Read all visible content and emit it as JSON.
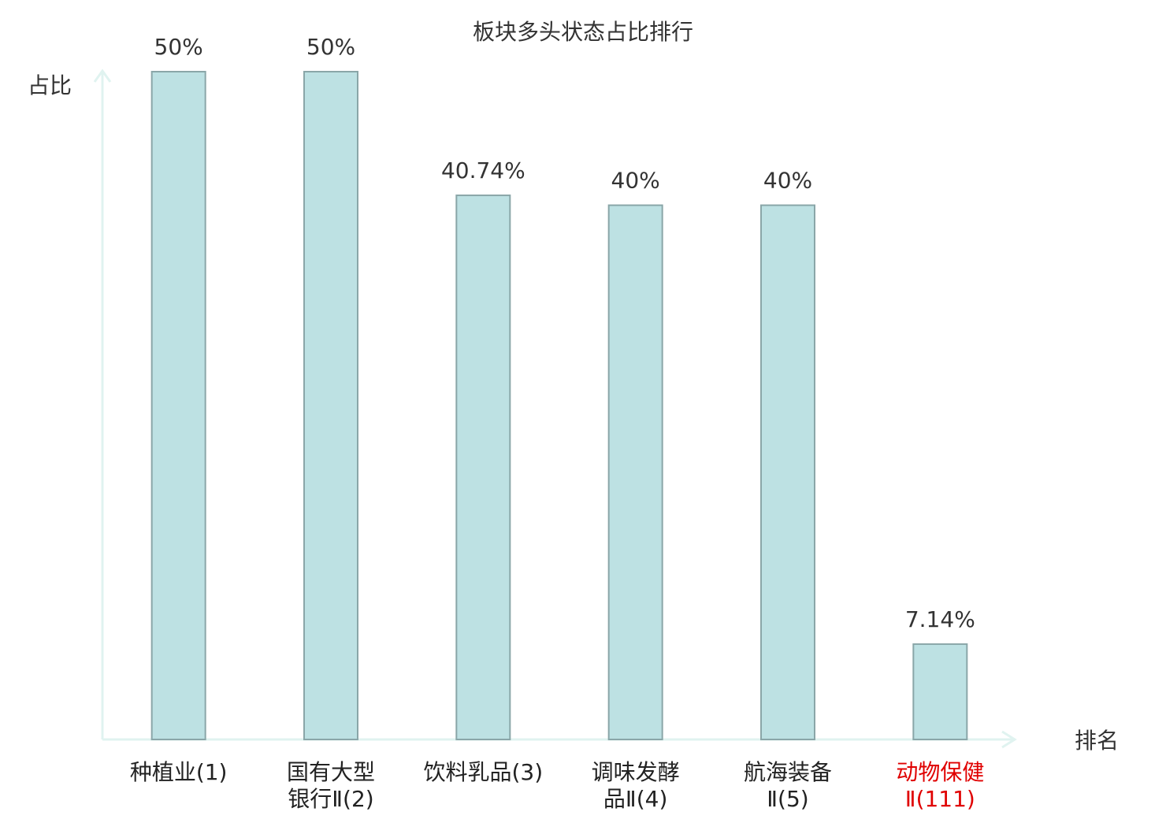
{
  "chart_data": {
    "type": "bar",
    "title": "板块多头状态占比排行",
    "y_label": "占比",
    "x_label": "排名",
    "categories": [
      "种植业(1)",
      "国有大型\n银行Ⅱ(2)",
      "饮料乳品(3)",
      "调味发酵\n品Ⅱ(4)",
      "航海装备\nⅡ(5)",
      "动物保健\nⅡ(111)"
    ],
    "values": [
      50,
      50,
      40.74,
      40,
      40,
      7.14
    ],
    "value_labels": [
      "50%",
      "50%",
      "40.74%",
      "40%",
      "40%",
      "7.14%"
    ],
    "color": "#bde1e3",
    "category_colors": [
      "#222222",
      "#222222",
      "#222222",
      "#222222",
      "#222222",
      "#e00000"
    ],
    "ylim": [
      0,
      50
    ]
  }
}
